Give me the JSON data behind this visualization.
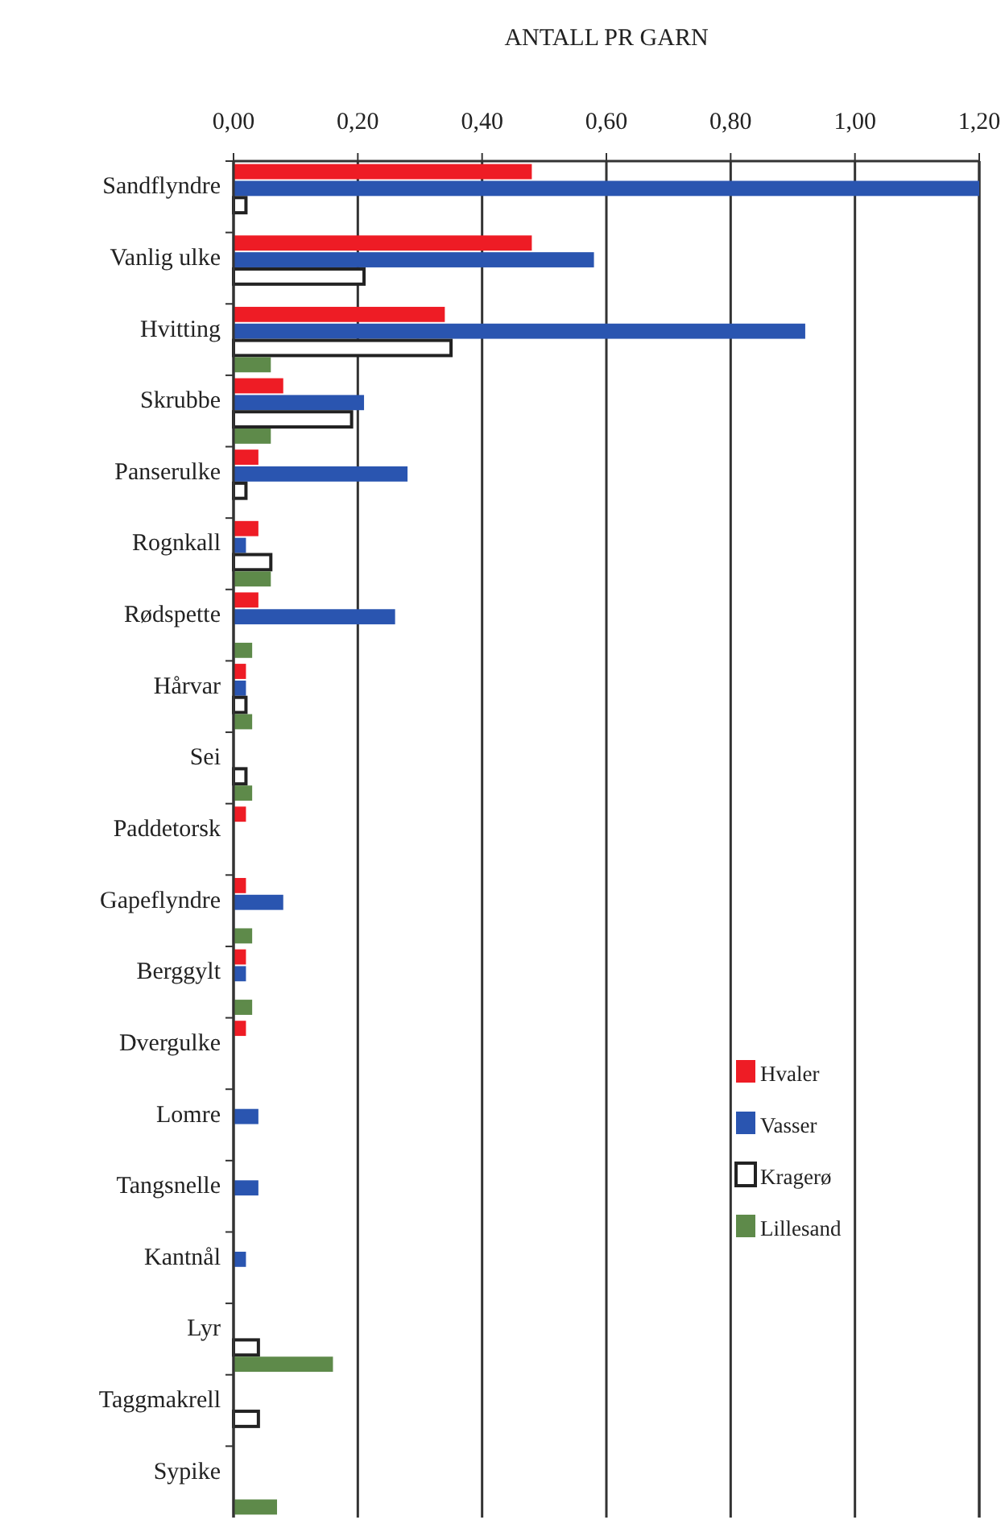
{
  "chart_data": {
    "type": "bar",
    "orientation": "horizontal",
    "xlabel": "ANTALL PR GARN",
    "categories": [
      "Sandflyndre",
      "Vanlig ulke",
      "Hvitting",
      "Skrubbe",
      "Panserulke",
      "Rognkall",
      "Rødspette",
      "Hårvar",
      "Sei",
      "Paddetorsk",
      "Gapeflyndre",
      "Berggylt",
      "Dvergulke",
      "Lomre",
      "Tangsnelle",
      "Kantnål",
      "Lyr",
      "Taggmakrell",
      "Sypike"
    ],
    "series": [
      {
        "name": "Hvaler",
        "color": "#ee1c25",
        "values": [
          0.48,
          0.48,
          0.34,
          0.08,
          0.04,
          0.04,
          0.04,
          0.02,
          null,
          0.02,
          0.02,
          0.02,
          0.02,
          null,
          null,
          null,
          null,
          null,
          null
        ]
      },
      {
        "name": "Vasser",
        "color": "#2a55b0",
        "values": [
          1.2,
          0.58,
          0.92,
          0.21,
          0.28,
          0.02,
          0.26,
          0.02,
          null,
          null,
          0.08,
          0.02,
          null,
          0.04,
          0.04,
          0.02,
          null,
          null,
          null
        ]
      },
      {
        "name": "Kragerø",
        "color": "#ffffff",
        "values": [
          0.02,
          0.21,
          0.35,
          0.19,
          0.02,
          0.06,
          null,
          0.02,
          0.02,
          null,
          null,
          null,
          null,
          null,
          null,
          null,
          0.04,
          0.04,
          null
        ]
      },
      {
        "name": "Lillesand",
        "color": "#5e8a4a",
        "values": [
          null,
          null,
          0.06,
          0.06,
          null,
          0.06,
          0.03,
          0.03,
          0.03,
          null,
          0.03,
          0.03,
          null,
          null,
          null,
          null,
          0.16,
          null,
          0.07
        ]
      }
    ],
    "xlim": [
      0,
      1.2
    ],
    "xticks": [
      {
        "value": 0,
        "label": "0,00"
      },
      {
        "value": 0.2,
        "label": "0,20"
      },
      {
        "value": 0.4,
        "label": "0,40"
      },
      {
        "value": 0.6,
        "label": "0,60"
      },
      {
        "value": 0.8,
        "label": "0,80"
      },
      {
        "value": 1.0,
        "label": "1,00"
      },
      {
        "value": 1.2,
        "label": "1,20"
      }
    ],
    "grid": "x",
    "legend": "bottom right"
  }
}
